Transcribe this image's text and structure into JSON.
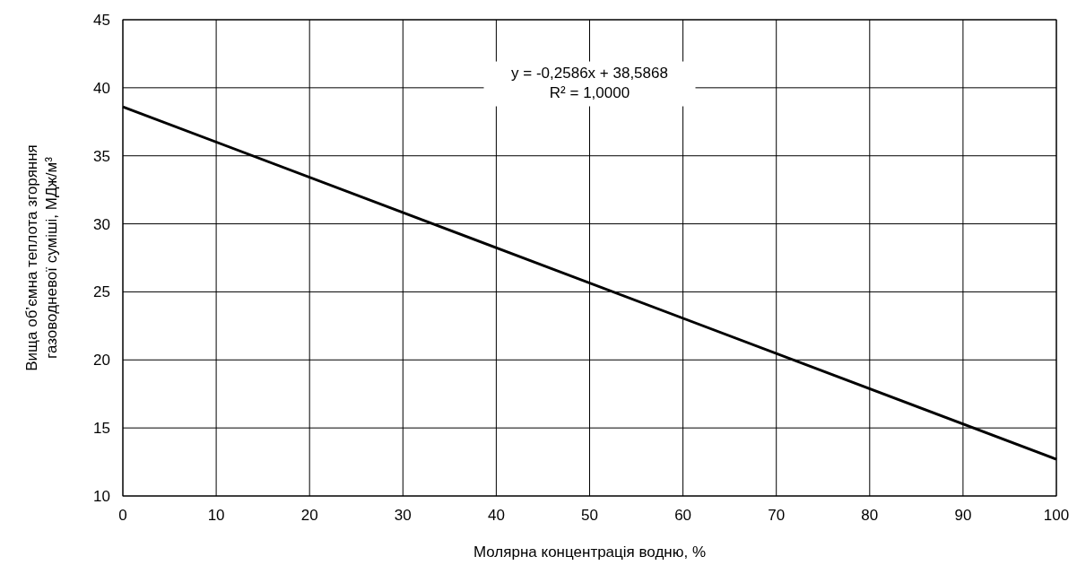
{
  "chart_data": {
    "type": "line",
    "xlabel": "Молярна концентрація водню, %",
    "ylabel": "Вища об’ємна теплота згоряння\nгазоводневої суміші,  МДж/м³",
    "x": [
      0,
      100
    ],
    "series": [
      {
        "color": "#000000",
        "values": [
          38.6,
          12.7
        ]
      }
    ],
    "xlim": [
      0,
      100
    ],
    "xticks": [
      0,
      10,
      20,
      30,
      40,
      50,
      60,
      70,
      80,
      90,
      100
    ],
    "ylim": [
      10,
      45
    ],
    "yticks": [
      10,
      15,
      20,
      25,
      30,
      35,
      40,
      45
    ],
    "grid": true,
    "marker": "none",
    "line_style": "solid",
    "annotations": [
      "y = -0,2586x + 38,5868",
      "R² = 1,0000"
    ]
  }
}
